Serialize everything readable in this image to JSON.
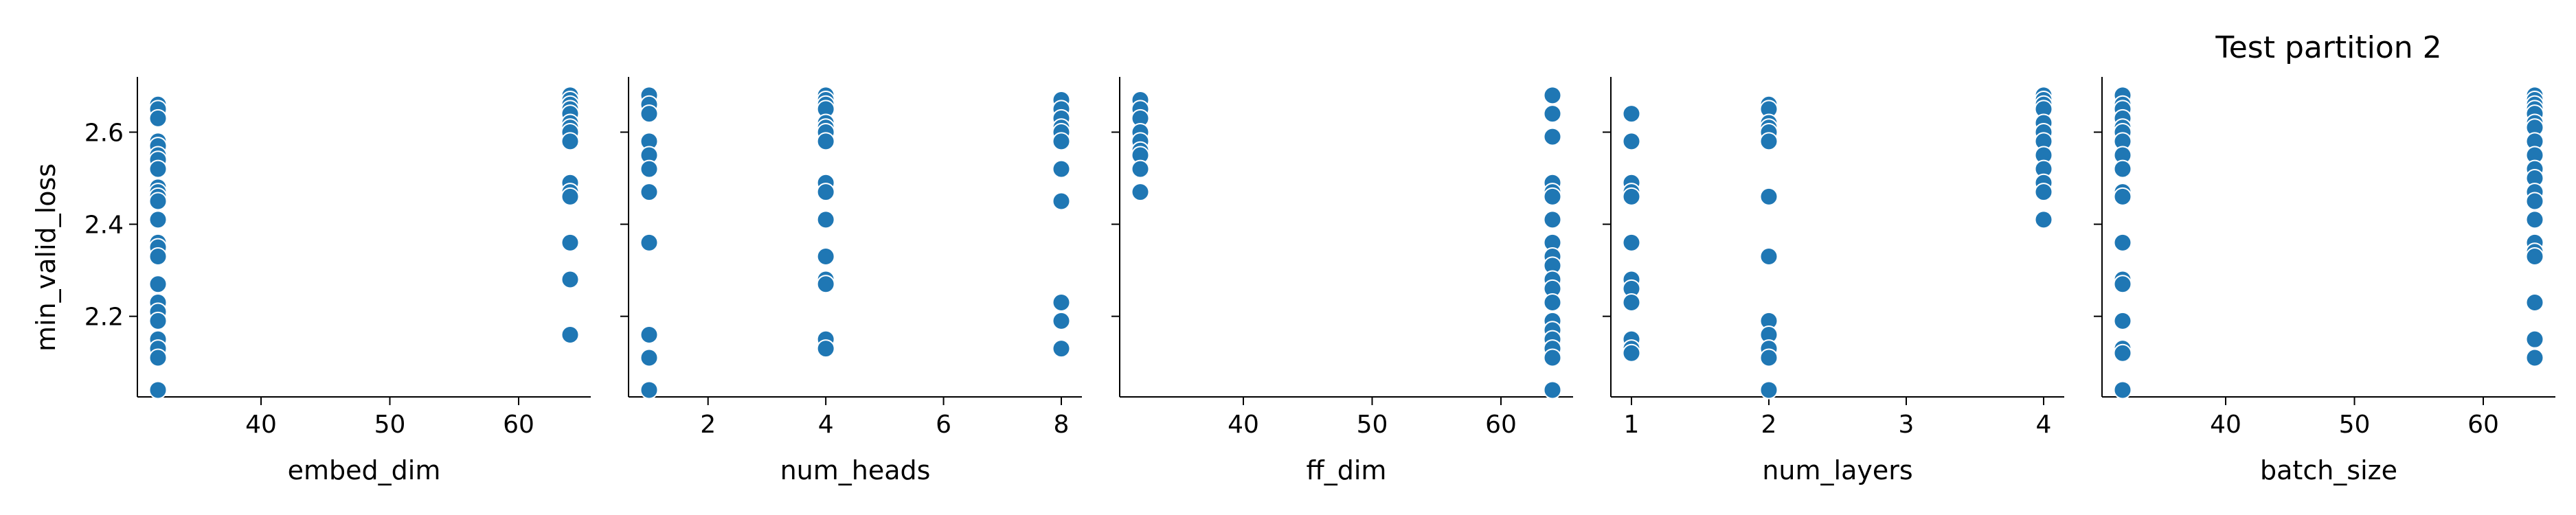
{
  "chart_data": {
    "type": "scatter",
    "title": "Test partition 2",
    "ylabel": "min_valid_loss",
    "ylim": [
      2.025,
      2.72
    ],
    "yticks": [
      2.2,
      2.4,
      2.6
    ],
    "marker_color": "#1f77b4",
    "marker_edge_color": "#ffffff",
    "grid": false,
    "panels": [
      {
        "xlabel": "embed_dim",
        "xlim": [
          30.4,
          65.6
        ],
        "xticks": [
          40,
          50,
          60
        ],
        "points": [
          [
            32,
            2.66
          ],
          [
            32,
            2.65
          ],
          [
            32,
            2.63
          ],
          [
            32,
            2.58
          ],
          [
            32,
            2.57
          ],
          [
            32,
            2.55
          ],
          [
            32,
            2.54
          ],
          [
            32,
            2.52
          ],
          [
            32,
            2.48
          ],
          [
            32,
            2.47
          ],
          [
            32,
            2.46
          ],
          [
            32,
            2.45
          ],
          [
            32,
            2.41
          ],
          [
            32,
            2.36
          ],
          [
            32,
            2.35
          ],
          [
            32,
            2.33
          ],
          [
            32,
            2.27
          ],
          [
            32,
            2.23
          ],
          [
            32,
            2.21
          ],
          [
            32,
            2.19
          ],
          [
            32,
            2.15
          ],
          [
            32,
            2.13
          ],
          [
            32,
            2.11
          ],
          [
            32,
            2.04
          ],
          [
            64,
            2.68
          ],
          [
            64,
            2.67
          ],
          [
            64,
            2.66
          ],
          [
            64,
            2.65
          ],
          [
            64,
            2.64
          ],
          [
            64,
            2.62
          ],
          [
            64,
            2.61
          ],
          [
            64,
            2.6
          ],
          [
            64,
            2.58
          ],
          [
            64,
            2.49
          ],
          [
            64,
            2.47
          ],
          [
            64,
            2.46
          ],
          [
            64,
            2.36
          ],
          [
            64,
            2.28
          ],
          [
            64,
            2.16
          ]
        ]
      },
      {
        "xlabel": "num_heads",
        "xlim": [
          0.65,
          8.35
        ],
        "xticks": [
          2,
          4,
          6,
          8
        ],
        "points": [
          [
            1,
            2.68
          ],
          [
            1,
            2.66
          ],
          [
            1,
            2.64
          ],
          [
            1,
            2.58
          ],
          [
            1,
            2.55
          ],
          [
            1,
            2.52
          ],
          [
            1,
            2.47
          ],
          [
            1,
            2.36
          ],
          [
            1,
            2.16
          ],
          [
            1,
            2.11
          ],
          [
            1,
            2.04
          ],
          [
            4,
            2.68
          ],
          [
            4,
            2.67
          ],
          [
            4,
            2.66
          ],
          [
            4,
            2.65
          ],
          [
            4,
            2.62
          ],
          [
            4,
            2.61
          ],
          [
            4,
            2.6
          ],
          [
            4,
            2.58
          ],
          [
            4,
            2.49
          ],
          [
            4,
            2.47
          ],
          [
            4,
            2.41
          ],
          [
            4,
            2.33
          ],
          [
            4,
            2.28
          ],
          [
            4,
            2.27
          ],
          [
            4,
            2.15
          ],
          [
            4,
            2.13
          ],
          [
            8,
            2.67
          ],
          [
            8,
            2.65
          ],
          [
            8,
            2.63
          ],
          [
            8,
            2.61
          ],
          [
            8,
            2.6
          ],
          [
            8,
            2.58
          ],
          [
            8,
            2.52
          ],
          [
            8,
            2.45
          ],
          [
            8,
            2.23
          ],
          [
            8,
            2.19
          ],
          [
            8,
            2.13
          ]
        ]
      },
      {
        "xlabel": "ff_dim",
        "xlim": [
          30.4,
          65.6
        ],
        "xticks": [
          40,
          50,
          60
        ],
        "points": [
          [
            32,
            2.67
          ],
          [
            32,
            2.65
          ],
          [
            32,
            2.63
          ],
          [
            32,
            2.6
          ],
          [
            32,
            2.58
          ],
          [
            32,
            2.56
          ],
          [
            32,
            2.55
          ],
          [
            32,
            2.52
          ],
          [
            32,
            2.47
          ],
          [
            64,
            2.68
          ],
          [
            64,
            2.64
          ],
          [
            64,
            2.59
          ],
          [
            64,
            2.49
          ],
          [
            64,
            2.47
          ],
          [
            64,
            2.46
          ],
          [
            64,
            2.41
          ],
          [
            64,
            2.36
          ],
          [
            64,
            2.33
          ],
          [
            64,
            2.31
          ],
          [
            64,
            2.28
          ],
          [
            64,
            2.26
          ],
          [
            64,
            2.23
          ],
          [
            64,
            2.19
          ],
          [
            64,
            2.17
          ],
          [
            64,
            2.15
          ],
          [
            64,
            2.13
          ],
          [
            64,
            2.11
          ],
          [
            64,
            2.04
          ]
        ]
      },
      {
        "xlabel": "num_layers",
        "xlim": [
          0.85,
          4.15
        ],
        "xticks": [
          1,
          2,
          3,
          4
        ],
        "points": [
          [
            1,
            2.64
          ],
          [
            1,
            2.58
          ],
          [
            1,
            2.49
          ],
          [
            1,
            2.47
          ],
          [
            1,
            2.46
          ],
          [
            1,
            2.36
          ],
          [
            1,
            2.28
          ],
          [
            1,
            2.26
          ],
          [
            1,
            2.23
          ],
          [
            1,
            2.15
          ],
          [
            1,
            2.13
          ],
          [
            1,
            2.12
          ],
          [
            2,
            2.66
          ],
          [
            2,
            2.65
          ],
          [
            2,
            2.62
          ],
          [
            2,
            2.61
          ],
          [
            2,
            2.6
          ],
          [
            2,
            2.58
          ],
          [
            2,
            2.46
          ],
          [
            2,
            2.33
          ],
          [
            2,
            2.19
          ],
          [
            2,
            2.16
          ],
          [
            2,
            2.13
          ],
          [
            2,
            2.11
          ],
          [
            2,
            2.04
          ],
          [
            4,
            2.68
          ],
          [
            4,
            2.67
          ],
          [
            4,
            2.66
          ],
          [
            4,
            2.65
          ],
          [
            4,
            2.62
          ],
          [
            4,
            2.6
          ],
          [
            4,
            2.58
          ],
          [
            4,
            2.55
          ],
          [
            4,
            2.52
          ],
          [
            4,
            2.49
          ],
          [
            4,
            2.47
          ],
          [
            4,
            2.41
          ]
        ]
      },
      {
        "xlabel": "batch_size",
        "xlim": [
          30.4,
          65.6
        ],
        "xticks": [
          40,
          50,
          60
        ],
        "points": [
          [
            32,
            2.68
          ],
          [
            32,
            2.66
          ],
          [
            32,
            2.65
          ],
          [
            32,
            2.63
          ],
          [
            32,
            2.61
          ],
          [
            32,
            2.6
          ],
          [
            32,
            2.58
          ],
          [
            32,
            2.55
          ],
          [
            32,
            2.52
          ],
          [
            32,
            2.47
          ],
          [
            32,
            2.46
          ],
          [
            32,
            2.36
          ],
          [
            32,
            2.28
          ],
          [
            32,
            2.27
          ],
          [
            32,
            2.19
          ],
          [
            32,
            2.13
          ],
          [
            32,
            2.12
          ],
          [
            32,
            2.04
          ],
          [
            64,
            2.68
          ],
          [
            64,
            2.67
          ],
          [
            64,
            2.66
          ],
          [
            64,
            2.65
          ],
          [
            64,
            2.64
          ],
          [
            64,
            2.62
          ],
          [
            64,
            2.61
          ],
          [
            64,
            2.58
          ],
          [
            64,
            2.55
          ],
          [
            64,
            2.52
          ],
          [
            64,
            2.5
          ],
          [
            64,
            2.47
          ],
          [
            64,
            2.45
          ],
          [
            64,
            2.41
          ],
          [
            64,
            2.36
          ],
          [
            64,
            2.34
          ],
          [
            64,
            2.33
          ],
          [
            64,
            2.23
          ],
          [
            64,
            2.15
          ],
          [
            64,
            2.11
          ]
        ]
      }
    ]
  }
}
